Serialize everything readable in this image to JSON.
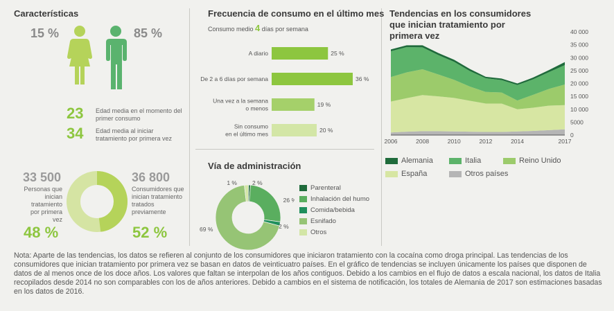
{
  "caracteristicas": {
    "title": "Características",
    "female_pct": "15 %",
    "male_pct": "85 %",
    "edad_consumo": {
      "value": "23",
      "label": "Edad media en el momento del primer consumo"
    },
    "edad_tratamiento": {
      "value": "34",
      "label": "Edad media al iniciar tratamiento por primera vez"
    },
    "left_stat": {
      "value": "33 500",
      "label": "Personas que inician tratamiento por primera vez",
      "pct": "48 %"
    },
    "right_stat": {
      "value": "36 800",
      "label": "Consumidores que inician tratamiento tratados previamente",
      "pct": "52 %"
    },
    "colors": {
      "first": "#b5d35a",
      "previous": "#d5e4a3",
      "person_female": "#b5d35a",
      "person_male": "#5ab36e"
    }
  },
  "frecuencia": {
    "title": "Frecuencia de consumo en el último mes",
    "subtitle_pre": "Consumo medio",
    "subtitle_num": "4",
    "subtitle_post": "días por semana"
  },
  "via": {
    "title": "Vía de administración"
  },
  "tendencias": {
    "title": "Tendencias en los consumidores que inician tratamiento por primera vez"
  },
  "note": "Nota: Aparte de las tendencias, los datos se refieren al conjunto de los consumidores que iniciaron tratamiento con la cocaína como droga principal. Las tendencias de los consumidores que inician tratamiento por primera vez se basan en datos de veinticuatro países. En el gráfico de tendencias se incluyen únicamente los países que disponen de datos de al menos once de los doce años. Los valores que faltan se interpolan de los años contiguos. Debido a los cambios en el flujo de datos a escala nacional, los datos de Italia recopilados desde 2014 no son comparables con los de años anteriores. Debido a cambios en el sistema de notificación, los totales de Alemania de 2017 son estimaciones basadas en los datos de 2016.",
  "chart_data": [
    {
      "type": "bar",
      "orientation": "horizontal",
      "categories": [
        "A diario",
        "De 2 a 6 días por semana",
        "Una vez a la semana o menos",
        "Sin consumo en el último mes"
      ],
      "category_lines": [
        [
          "A diario"
        ],
        [
          "De 2 a 6 días por semana"
        ],
        [
          "Una vez a la semana",
          "o menos"
        ],
        [
          "Sin consumo",
          "en el último mes"
        ]
      ],
      "values": [
        25,
        36,
        19,
        20
      ],
      "labels": [
        "25 %",
        "36 %",
        "19 %",
        "20 %"
      ],
      "colors": [
        "#8dc63f",
        "#8dc63f",
        "#a5d06a",
        "#d3e6a6"
      ]
    },
    {
      "type": "pie",
      "style": "donut",
      "series": [
        {
          "name": "Parenteral",
          "value": 1,
          "label": "1 %",
          "color": "#1f6b3b"
        },
        {
          "name": "Inhalación del humo",
          "value": 26,
          "label": "26 %",
          "color": "#5aae5f"
        },
        {
          "name": "Comida/bebida",
          "value": 2,
          "label": "2 %",
          "color": "#1f8f5c"
        },
        {
          "name": "Esnifado",
          "value": 69,
          "label": "69 %",
          "color": "#96c475"
        },
        {
          "name": "Otros",
          "value": 2,
          "label": "2 %",
          "color": "#d3e6a6"
        }
      ]
    },
    {
      "type": "area",
      "stacked": true,
      "x": [
        2006,
        2007,
        2008,
        2009,
        2010,
        2011,
        2012,
        2013,
        2014,
        2015,
        2016,
        2017
      ],
      "xticks": [
        "2006",
        "2008",
        "2010",
        "2012",
        "2014",
        "2017"
      ],
      "xtick_values": [
        2006,
        2008,
        2010,
        2012,
        2014,
        2017
      ],
      "ylim": [
        0,
        40000
      ],
      "yticks": [
        "0",
        "5000",
        "10 000",
        "15 000",
        "20 000",
        "25 000",
        "30 000",
        "35 000",
        "40 000"
      ],
      "ytick_values": [
        0,
        5000,
        10000,
        15000,
        20000,
        25000,
        30000,
        35000,
        40000
      ],
      "series": [
        {
          "name": "Otros países",
          "color": "#b5b5b5",
          "values": [
            1000,
            1300,
            1500,
            1500,
            1400,
            1300,
            1200,
            1200,
            1400,
            1600,
            1900,
            2200
          ]
        },
        {
          "name": "España",
          "color": "#d7e6a3",
          "values": [
            12000,
            13000,
            14000,
            13500,
            13000,
            12000,
            11000,
            11000,
            8600,
            9000,
            9500,
            9400
          ]
        },
        {
          "name": "Reino Unido",
          "color": "#9ccb6b",
          "values": [
            9500,
            10000,
            10000,
            8500,
            7000,
            5500,
            4500,
            4300,
            3400,
            5000,
            6500,
            8000
          ]
        },
        {
          "name": "Italia",
          "color": "#5cb36a",
          "values": [
            10000,
            9800,
            8500,
            7500,
            7000,
            6000,
            5300,
            4800,
            6000,
            6000,
            6500,
            7500
          ]
        },
        {
          "name": "Alemania",
          "color": "#1f6b3b",
          "values": [
            700,
            700,
            800,
            800,
            800,
            800,
            600,
            600,
            600,
            700,
            800,
            1200
          ]
        }
      ],
      "legend": [
        "Alemania",
        "Italia",
        "Reino Unido",
        "España",
        "Otros países"
      ],
      "legend_placement": "bottom"
    }
  ]
}
